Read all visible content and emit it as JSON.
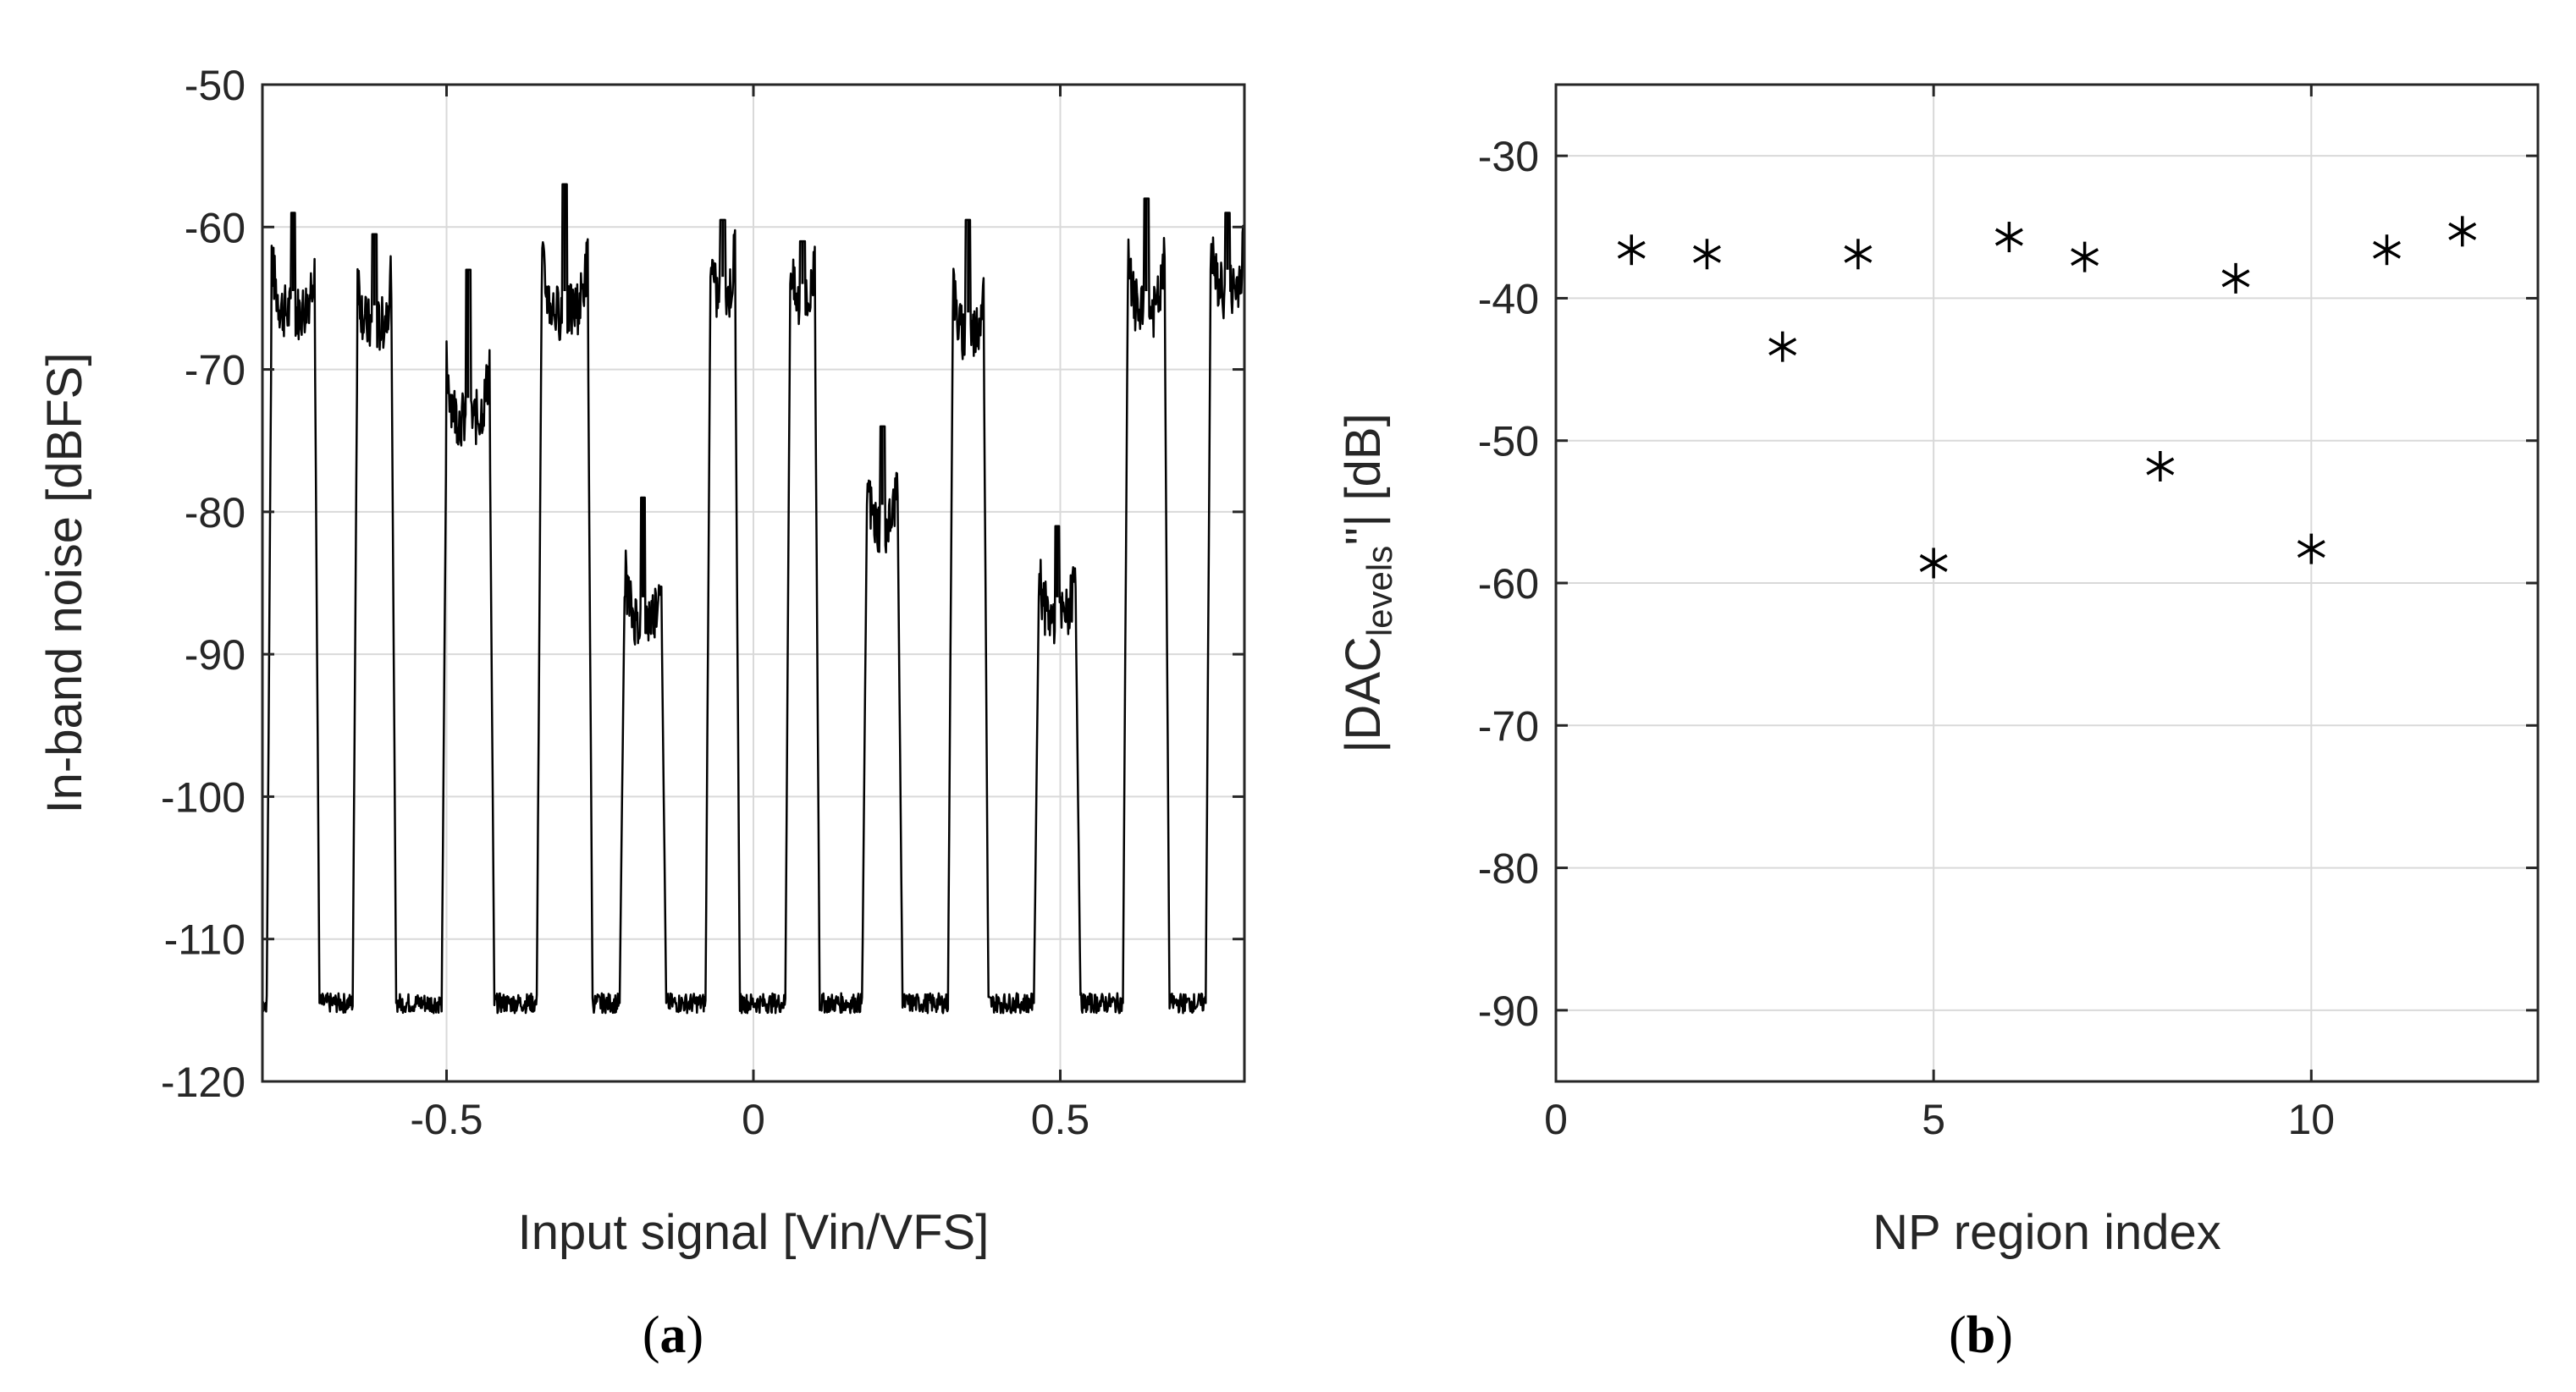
{
  "chart_data": [
    {
      "type": "line",
      "panel_label_open": "(",
      "panel_label": "a",
      "panel_label_close": ")",
      "xlabel": "Input signal [Vin/VFS]",
      "ylabel": "In-band noise [dBFS]",
      "xlim": [
        -0.8,
        0.8
      ],
      "ylim": [
        -120,
        -50
      ],
      "xticks": [
        -0.5,
        0,
        0.5
      ],
      "xtick_labels": [
        "-0.5",
        "0",
        "0.5"
      ],
      "yticks": [
        -120,
        -110,
        -100,
        -90,
        -80,
        -70,
        -60,
        -50
      ],
      "ytick_labels": [
        "-120",
        "-110",
        "-100",
        "-90",
        "-80",
        "-70",
        "-60",
        "-50"
      ],
      "grid": true,
      "line_color": "#000000",
      "baseline": -114.5,
      "plateaus": [
        {
          "x_start": -0.785,
          "x_end": -0.715,
          "level": -64.5,
          "spike": -59.0
        },
        {
          "x_start": -0.645,
          "x_end": -0.59,
          "level": -65.5,
          "spike": -60.5
        },
        {
          "x_start": -0.5,
          "x_end": -0.43,
          "level": -72.0,
          "spike": -63.0
        },
        {
          "x_start": -0.345,
          "x_end": -0.27,
          "level": -64.5,
          "spike": -57.0
        },
        {
          "x_start": -0.21,
          "x_end": -0.15,
          "level": -86.0,
          "spike": -79.0
        },
        {
          "x_start": -0.07,
          "x_end": -0.03,
          "level": -63.5,
          "spike": -59.5
        },
        {
          "x_start": 0.06,
          "x_end": 0.1,
          "level": -64.0,
          "spike": -61.0
        },
        {
          "x_start": 0.185,
          "x_end": 0.235,
          "level": -79.5,
          "spike": -74.0
        },
        {
          "x_start": 0.325,
          "x_end": 0.375,
          "level": -66.0,
          "spike": -59.5
        },
        {
          "x_start": 0.465,
          "x_end": 0.525,
          "level": -86.0,
          "spike": -81.0
        },
        {
          "x_start": 0.61,
          "x_end": 0.67,
          "level": -64.5,
          "spike": -58.0
        },
        {
          "x_start": 0.745,
          "x_end": 0.8,
          "level": -63.0,
          "spike": -59.0
        }
      ]
    },
    {
      "type": "scatter",
      "panel_label_open": "(",
      "panel_label": "b",
      "panel_label_close": ")",
      "xlabel": "NP region index",
      "ylabel_main": "|DAC",
      "ylabel_sub": "levels",
      "ylabel_end": "''| [dB]",
      "xlim": [
        0,
        13
      ],
      "ylim": [
        -95,
        -25
      ],
      "xticks": [
        0,
        5,
        10
      ],
      "xtick_labels": [
        "0",
        "5",
        "10"
      ],
      "yticks": [
        -90,
        -80,
        -70,
        -60,
        -50,
        -40,
        -30
      ],
      "ytick_labels": [
        "-90",
        "-80",
        "-70",
        "-60",
        "-50",
        "-40",
        "-30"
      ],
      "grid": true,
      "marker": "asterisk",
      "x": [
        1,
        2,
        3,
        4,
        5,
        6,
        7,
        8,
        9,
        10,
        11,
        12
      ],
      "y": [
        -36.6,
        -36.9,
        -43.4,
        -36.9,
        -58.6,
        -35.7,
        -37.1,
        -51.8,
        -38.6,
        -57.6,
        -36.6,
        -35.3
      ]
    }
  ]
}
